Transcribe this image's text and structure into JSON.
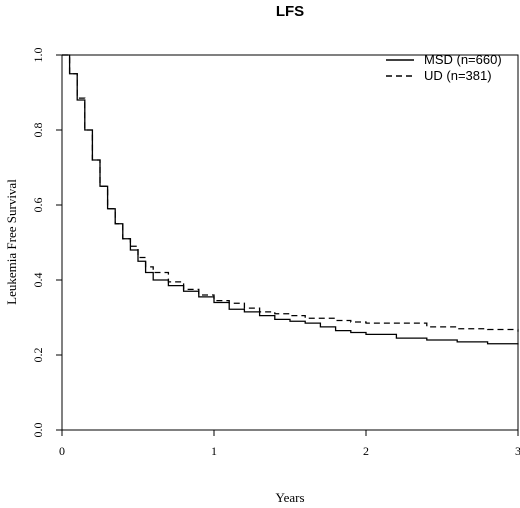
{
  "chart_data": {
    "type": "line",
    "title": "LFS",
    "xlabel": "Years",
    "ylabel": "Leukemia Free Survival",
    "xlim": [
      0,
      3
    ],
    "ylim": [
      0,
      1
    ],
    "x_ticks": [
      "0",
      "1",
      "2",
      "3"
    ],
    "y_ticks": [
      "0.0",
      "0.2",
      "0.4",
      "0.6",
      "0.8",
      "1.0"
    ],
    "grid": false,
    "legend_position": "top-right",
    "series": [
      {
        "name": "MSD (n=660)",
        "style": "solid",
        "color": "#000000",
        "x": [
          0,
          0.05,
          0.1,
          0.15,
          0.2,
          0.25,
          0.3,
          0.35,
          0.4,
          0.45,
          0.5,
          0.55,
          0.6,
          0.7,
          0.8,
          0.9,
          1.0,
          1.1,
          1.2,
          1.3,
          1.4,
          1.5,
          1.6,
          1.7,
          1.8,
          1.9,
          2.0,
          2.2,
          2.4,
          2.6,
          2.8,
          3.0
        ],
        "y": [
          1.0,
          0.95,
          0.88,
          0.8,
          0.72,
          0.65,
          0.59,
          0.55,
          0.51,
          0.48,
          0.45,
          0.42,
          0.4,
          0.385,
          0.37,
          0.355,
          0.34,
          0.322,
          0.315,
          0.305,
          0.295,
          0.29,
          0.285,
          0.275,
          0.265,
          0.26,
          0.255,
          0.245,
          0.24,
          0.235,
          0.23,
          0.228
        ]
      },
      {
        "name": "UD (n=381)",
        "style": "dashed",
        "color": "#000000",
        "x": [
          0,
          0.05,
          0.1,
          0.15,
          0.2,
          0.25,
          0.3,
          0.35,
          0.4,
          0.45,
          0.5,
          0.55,
          0.6,
          0.7,
          0.8,
          0.9,
          1.0,
          1.1,
          1.2,
          1.3,
          1.4,
          1.5,
          1.6,
          1.7,
          1.8,
          1.9,
          2.0,
          2.2,
          2.4,
          2.6,
          2.8,
          3.0
        ],
        "y": [
          1.0,
          0.95,
          0.885,
          0.8,
          0.72,
          0.65,
          0.59,
          0.55,
          0.51,
          0.49,
          0.46,
          0.435,
          0.42,
          0.395,
          0.375,
          0.36,
          0.345,
          0.338,
          0.325,
          0.315,
          0.31,
          0.305,
          0.298,
          0.298,
          0.292,
          0.288,
          0.285,
          0.285,
          0.275,
          0.27,
          0.268,
          0.262
        ]
      }
    ]
  }
}
